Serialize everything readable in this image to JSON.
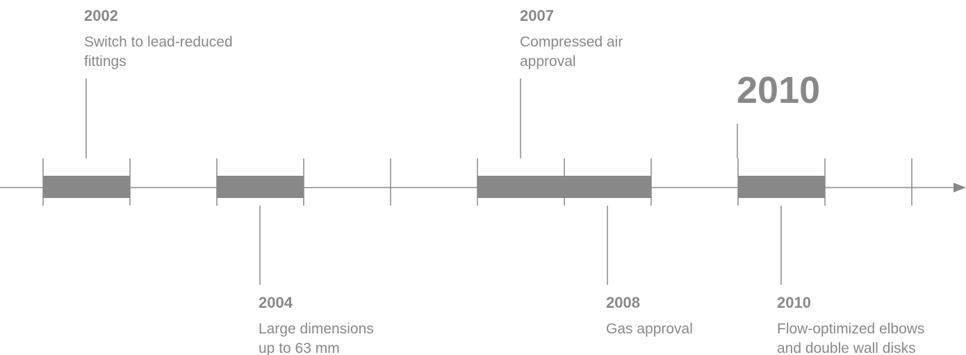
{
  "highlight": "2010",
  "events": [
    {
      "year": "2002",
      "lines": [
        "Switch to lead-reduced",
        "fittings"
      ]
    },
    {
      "year": "2004",
      "lines": [
        "Large dimensions",
        "up to 63 mm"
      ]
    },
    {
      "year": "2007",
      "lines": [
        "Compressed air",
        "approval"
      ]
    },
    {
      "year": "2008",
      "lines": [
        "Gas approval"
      ]
    },
    {
      "year": "2010",
      "lines": [
        "Flow-optimized elbows",
        "and double wall disks"
      ]
    }
  ]
}
